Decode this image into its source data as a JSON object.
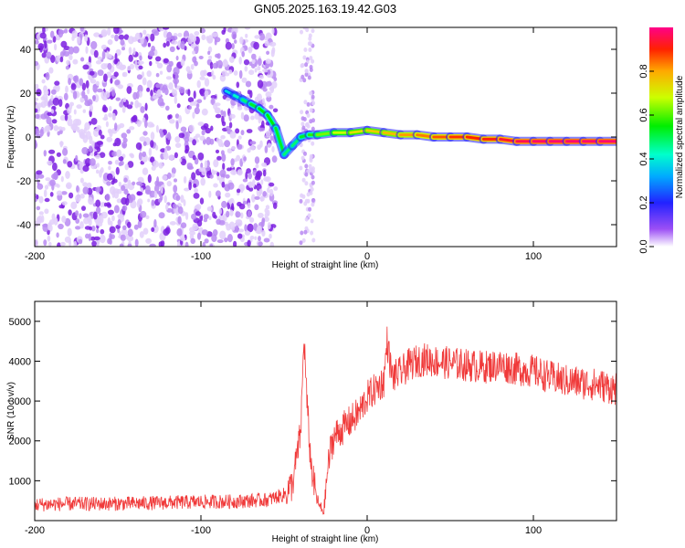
{
  "title": "GN05.2025.163.19.42.G03",
  "chart_data": [
    {
      "type": "heatmap",
      "xlabel": "Height of straight line (km)",
      "ylabel": "Frequency (Hz)",
      "xlim": [
        -200,
        150
      ],
      "ylim": [
        -50,
        50
      ],
      "xticks": [
        -200,
        -100,
        0,
        100
      ],
      "yticks": [
        -40,
        -20,
        0,
        20,
        40
      ],
      "colorbar": {
        "label": "Normalized spectral amplitude",
        "range": [
          0,
          1
        ],
        "ticks": [
          "0.0",
          "0.2",
          "0.4",
          "0.6",
          "0.8"
        ]
      },
      "noise_region_x": [
        -200,
        -55
      ],
      "noise_band_x": [
        -40,
        -32
      ],
      "trace": {
        "x": [
          -85,
          -80,
          -75,
          -70,
          -65,
          -60,
          -55,
          -50,
          -45,
          -40,
          -35,
          -30,
          -20,
          -10,
          0,
          10,
          20,
          30,
          40,
          50,
          60,
          70,
          80,
          90,
          100,
          110,
          120,
          130,
          140,
          150
        ],
        "y": [
          21,
          19,
          17,
          15,
          13,
          10,
          4,
          -8,
          -4,
          0,
          1,
          1,
          2,
          2,
          3,
          2,
          1,
          1,
          0,
          0,
          0,
          -1,
          -1,
          -2,
          -2,
          -2,
          -2,
          -2,
          -2,
          -2
        ],
        "amplitude": [
          0.35,
          0.4,
          0.45,
          0.5,
          0.55,
          0.55,
          0.55,
          0.5,
          0.45,
          0.5,
          0.55,
          0.6,
          0.65,
          0.7,
          0.75,
          0.75,
          0.8,
          0.82,
          0.85,
          0.88,
          0.9,
          0.9,
          0.92,
          0.95,
          0.97,
          0.98,
          0.98,
          0.98,
          0.98,
          0.98
        ]
      }
    },
    {
      "type": "line",
      "xlabel": "Height of straight line (km)",
      "ylabel": "SNR (10 * v/v)",
      "xlim": [
        -200,
        150
      ],
      "ylim": [
        0,
        5500
      ],
      "xticks": [
        -200,
        -100,
        0,
        100
      ],
      "yticks": [
        1000,
        2000,
        3000,
        4000,
        5000
      ],
      "color": "#f03a3a",
      "series": [
        {
          "x": [
            -200,
            -180,
            -160,
            -140,
            -120,
            -100,
            -80,
            -60,
            -50,
            -45,
            -40,
            -38,
            -36,
            -34,
            -32,
            -30,
            -28,
            -26,
            -24,
            -22,
            -20,
            -15,
            -10,
            -5,
            0,
            5,
            10,
            12,
            15,
            20,
            25,
            30,
            35,
            40,
            50,
            60,
            70,
            80,
            90,
            100,
            110,
            120,
            130,
            140,
            150
          ],
          "values": [
            400,
            420,
            420,
            430,
            450,
            470,
            480,
            520,
            650,
            900,
            2200,
            4600,
            2800,
            1500,
            900,
            500,
            300,
            250,
            1200,
            1800,
            2100,
            2300,
            2500,
            2700,
            3100,
            3300,
            3500,
            4500,
            3600,
            3700,
            3900,
            4000,
            4050,
            4000,
            3950,
            3900,
            3850,
            3900,
            3800,
            3750,
            3600,
            3500,
            3450,
            3400,
            3300
          ]
        }
      ]
    }
  ]
}
